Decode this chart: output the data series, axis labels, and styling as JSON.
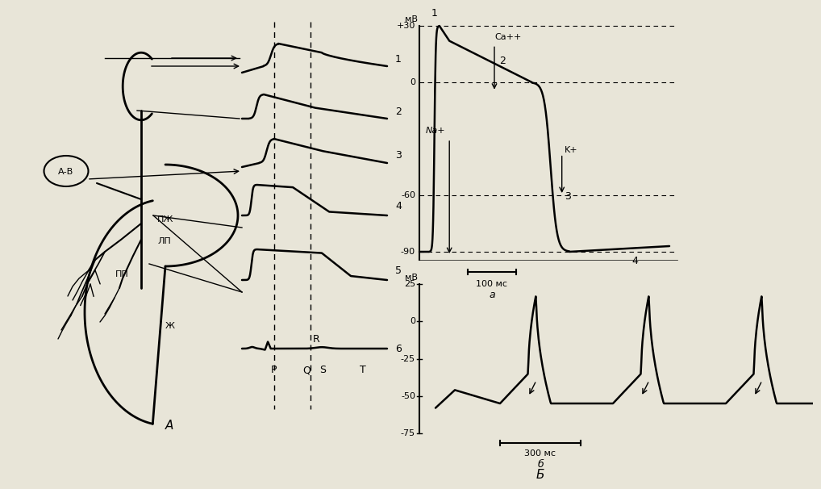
{
  "fig_width": 9.98,
  "fig_height": 5.7,
  "bg_color": "#e8e5d8",
  "title_a": "A",
  "title_b": "Б",
  "label_a": "a",
  "label_b": "б",
  "left_labels": [
    "А-В",
    "ПЖ",
    "ЛП",
    "ПП",
    "Ж"
  ],
  "ecg_labels": [
    "P",
    "Q",
    "S",
    "T",
    "R"
  ],
  "right_labels_top": [
    "мВ",
    "+30",
    "0",
    "-60",
    "-90"
  ],
  "right_labels_bottom": [
    "мВ",
    "25",
    "0",
    "-25",
    "-50",
    "-75"
  ],
  "ion_labels": [
    "Na+",
    "Ca++",
    "K+"
  ],
  "phase_labels": [
    "1",
    "2",
    "3",
    "4"
  ],
  "timescale_top": "100 мс",
  "timescale_bottom": "300 мс"
}
